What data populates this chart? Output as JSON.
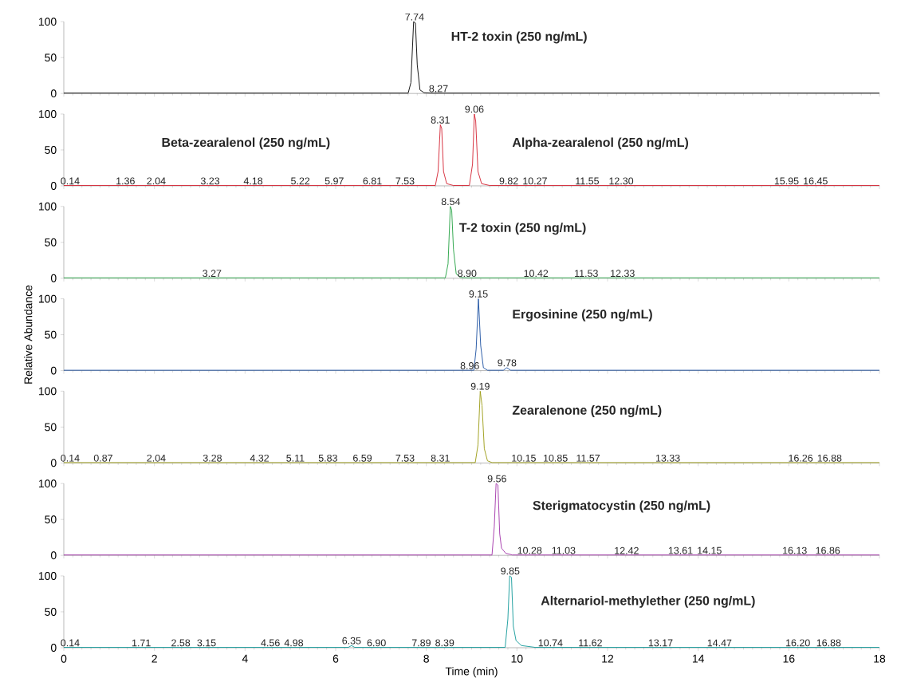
{
  "chart_data": [
    {
      "type": "line",
      "title": "HT-2 toxin (250 ng/mL)",
      "xlim": [
        0,
        18
      ],
      "ylim": [
        0,
        100
      ],
      "xticks": [
        0,
        2,
        4,
        6,
        8,
        10,
        12,
        14,
        16,
        18
      ],
      "yticks": [
        0,
        50,
        100
      ],
      "tick_labels": "y",
      "series": [
        {
          "color": "#000000",
          "x": [
            0,
            7.6,
            7.66,
            7.72,
            7.76,
            7.8,
            7.86,
            7.95,
            8.1,
            18
          ],
          "values": [
            0.5,
            0.5,
            15,
            100,
            98,
            40,
            5,
            1,
            0.5,
            0.5
          ]
        }
      ],
      "annotations": [
        {
          "text": "7.74",
          "x": 7.74,
          "y": 100
        },
        {
          "text": "8.27",
          "x": 8.27,
          "y": 0
        }
      ]
    },
    {
      "type": "line",
      "title": "Beta-zearalenol (250 ng/mL)",
      "xlim": [
        0,
        18
      ],
      "ylim": [
        0,
        100
      ],
      "xticks": [
        0,
        2,
        4,
        6,
        8,
        10,
        12,
        14,
        16,
        18
      ],
      "yticks": [
        0,
        50,
        100
      ],
      "tick_labels": "y",
      "series": [
        {
          "color": "#d42030",
          "x": [
            0,
            8.2,
            8.26,
            8.31,
            8.34,
            8.38,
            8.45,
            8.6,
            8.95,
            9.02,
            9.06,
            9.09,
            9.14,
            9.22,
            9.4,
            18
          ],
          "values": [
            0.5,
            0.5,
            20,
            85,
            80,
            20,
            3,
            0.5,
            0.5,
            30,
            100,
            90,
            20,
            3,
            0.5,
            0.5
          ]
        }
      ],
      "annotations": [
        "Alpha-zearalenol (250 ng/mL)",
        {
          "text": "0.14",
          "x": 0.14,
          "y": 0
        },
        {
          "text": "1.36",
          "x": 1.36,
          "y": 0
        },
        {
          "text": "2.04",
          "x": 2.04,
          "y": 0
        },
        {
          "text": "3.23",
          "x": 3.23,
          "y": 0
        },
        {
          "text": "4.18",
          "x": 4.18,
          "y": 0
        },
        {
          "text": "5.22",
          "x": 5.22,
          "y": 0
        },
        {
          "text": "5.97",
          "x": 5.97,
          "y": 0
        },
        {
          "text": "6.81",
          "x": 6.81,
          "y": 0
        },
        {
          "text": "7.53",
          "x": 7.53,
          "y": 0
        },
        {
          "text": "8.31",
          "x": 8.31,
          "y": 85
        },
        {
          "text": "9.06",
          "x": 9.06,
          "y": 100
        },
        {
          "text": "9.82",
          "x": 9.82,
          "y": 0
        },
        {
          "text": "10.27",
          "x": 10.27,
          "y": 0
        },
        {
          "text": "11.55",
          "x": 11.55,
          "y": 0
        },
        {
          "text": "12.30",
          "x": 12.3,
          "y": 0
        },
        {
          "text": "15.95",
          "x": 15.95,
          "y": 0
        },
        {
          "text": "16.45",
          "x": 16.45,
          "y": 0
        }
      ]
    },
    {
      "type": "line",
      "title": "T-2 toxin (250 ng/mL)",
      "xlim": [
        0,
        18
      ],
      "ylim": [
        0,
        100
      ],
      "xticks": [
        0,
        2,
        4,
        6,
        8,
        10,
        12,
        14,
        16,
        18
      ],
      "yticks": [
        0,
        50,
        100
      ],
      "tick_labels": "y",
      "series": [
        {
          "color": "#20a040",
          "x": [
            0,
            8.42,
            8.48,
            8.53,
            8.56,
            8.6,
            8.66,
            8.75,
            8.9,
            18
          ],
          "values": [
            0.5,
            0.5,
            20,
            100,
            95,
            40,
            6,
            1,
            0.5,
            0.5
          ]
        }
      ],
      "annotations": [
        {
          "text": "3.27",
          "x": 3.27,
          "y": 0
        },
        {
          "text": "8.54",
          "x": 8.54,
          "y": 100
        },
        {
          "text": "8.90",
          "x": 8.9,
          "y": 0
        },
        {
          "text": "10.42",
          "x": 10.42,
          "y": 0
        },
        {
          "text": "11.53",
          "x": 11.53,
          "y": 0
        },
        {
          "text": "12.33",
          "x": 12.33,
          "y": 0
        }
      ]
    },
    {
      "type": "line",
      "title": "Ergosinine (250 ng/mL)",
      "ylabel": "Relative Abundance",
      "xlim": [
        0,
        18
      ],
      "ylim": [
        0,
        100
      ],
      "xticks": [
        0,
        2,
        4,
        6,
        8,
        10,
        12,
        14,
        16,
        18
      ],
      "yticks": [
        0,
        50,
        100
      ],
      "tick_labels": "y",
      "series": [
        {
          "color": "#1a4fa0",
          "x": [
            0,
            9.05,
            9.1,
            9.15,
            9.2,
            9.26,
            9.35,
            9.7,
            9.78,
            9.86,
            18
          ],
          "values": [
            0.5,
            0.5,
            30,
            100,
            35,
            4,
            0.5,
            0.5,
            4,
            0.5,
            0.5
          ]
        }
      ],
      "annotations": [
        {
          "text": "8.96",
          "x": 8.96,
          "y": 0
        },
        {
          "text": "9.15",
          "x": 9.15,
          "y": 100
        },
        {
          "text": "9.78",
          "x": 9.78,
          "y": 4
        }
      ]
    },
    {
      "type": "line",
      "title": "Zearalenone (250 ng/mL)",
      "xlim": [
        0,
        18
      ],
      "ylim": [
        0,
        100
      ],
      "xticks": [
        0,
        2,
        4,
        6,
        8,
        10,
        12,
        14,
        16,
        18
      ],
      "yticks": [
        0,
        50,
        100
      ],
      "tick_labels": "y",
      "series": [
        {
          "color": "#9a9a10",
          "x": [
            0,
            9.08,
            9.14,
            9.19,
            9.23,
            9.28,
            9.35,
            9.45,
            18
          ],
          "values": [
            0.5,
            0.5,
            25,
            100,
            80,
            20,
            3,
            0.5,
            0.5
          ]
        }
      ],
      "annotations": [
        {
          "text": "0.14",
          "x": 0.14,
          "y": 0
        },
        {
          "text": "0.87",
          "x": 0.87,
          "y": 0
        },
        {
          "text": "2.04",
          "x": 2.04,
          "y": 0
        },
        {
          "text": "3.28",
          "x": 3.28,
          "y": 0
        },
        {
          "text": "4.32",
          "x": 4.32,
          "y": 0
        },
        {
          "text": "5.11",
          "x": 5.11,
          "y": 0
        },
        {
          "text": "5.83",
          "x": 5.83,
          "y": 0
        },
        {
          "text": "6.59",
          "x": 6.59,
          "y": 0
        },
        {
          "text": "7.53",
          "x": 7.53,
          "y": 0
        },
        {
          "text": "8.31",
          "x": 8.31,
          "y": 0
        },
        {
          "text": "9.19",
          "x": 9.19,
          "y": 100
        },
        {
          "text": "10.15",
          "x": 10.15,
          "y": 0
        },
        {
          "text": "10.85",
          "x": 10.85,
          "y": 0
        },
        {
          "text": "11.57",
          "x": 11.57,
          "y": 0
        },
        {
          "text": "13.33",
          "x": 13.33,
          "y": 0
        },
        {
          "text": "16.26",
          "x": 16.26,
          "y": 0
        },
        {
          "text": "16.88",
          "x": 16.88,
          "y": 0
        }
      ]
    },
    {
      "type": "line",
      "title": "Sterigmatocystin (250 ng/mL)",
      "xlim": [
        0,
        18
      ],
      "ylim": [
        0,
        100
      ],
      "xticks": [
        0,
        2,
        4,
        6,
        8,
        10,
        12,
        14,
        16,
        18
      ],
      "yticks": [
        0,
        50,
        100
      ],
      "tick_labels": "y",
      "series": [
        {
          "color": "#a030a8",
          "x": [
            0,
            9.45,
            9.5,
            9.54,
            9.58,
            9.62,
            9.66,
            9.75,
            9.9,
            18
          ],
          "values": [
            0.5,
            0.5,
            40,
            100,
            98,
            30,
            10,
            3,
            0.5,
            0.5
          ]
        }
      ],
      "annotations": [
        {
          "text": "9.56",
          "x": 9.56,
          "y": 100
        },
        {
          "text": "10.28",
          "x": 10.28,
          "y": 0
        },
        {
          "text": "11.03",
          "x": 11.03,
          "y": 0
        },
        {
          "text": "12.42",
          "x": 12.42,
          "y": 0
        },
        {
          "text": "13.61",
          "x": 13.61,
          "y": 0
        },
        {
          "text": "14.15",
          "x": 14.15,
          "y": 0
        },
        {
          "text": "16.13",
          "x": 16.13,
          "y": 0
        },
        {
          "text": "16.86",
          "x": 16.86,
          "y": 0
        }
      ]
    },
    {
      "type": "line",
      "title": "Alternariol-methylether (250 ng/mL)",
      "xlabel": "Time (min)",
      "xlim": [
        0,
        18
      ],
      "ylim": [
        0,
        100
      ],
      "xticks": [
        0,
        2,
        4,
        6,
        8,
        10,
        12,
        14,
        16,
        18
      ],
      "yticks": [
        0,
        50,
        100
      ],
      "series": [
        {
          "color": "#109898",
          "x": [
            0,
            6.28,
            6.35,
            6.42,
            9.74,
            9.8,
            9.84,
            9.88,
            9.92,
            9.98,
            10.1,
            10.4,
            18
          ],
          "values": [
            0.5,
            0.5,
            3,
            0.5,
            0.5,
            40,
            100,
            98,
            30,
            10,
            3,
            0.5,
            0.5
          ]
        }
      ],
      "annotations": [
        {
          "text": "0.14",
          "x": 0.14,
          "y": 0
        },
        {
          "text": "1.71",
          "x": 1.71,
          "y": 0
        },
        {
          "text": "2.58",
          "x": 2.58,
          "y": 0
        },
        {
          "text": "3.15",
          "x": 3.15,
          "y": 0
        },
        {
          "text": "4.56",
          "x": 4.56,
          "y": 0
        },
        {
          "text": "4.98",
          "x": 4.98,
          "y": 0
        },
        {
          "text": "6.35",
          "x": 6.35,
          "y": 3
        },
        {
          "text": "6.90",
          "x": 6.9,
          "y": 0
        },
        {
          "text": "7.89",
          "x": 7.89,
          "y": 0
        },
        {
          "text": "8.39",
          "x": 8.39,
          "y": 0
        },
        {
          "text": "9.85",
          "x": 9.85,
          "y": 100
        },
        {
          "text": "10.74",
          "x": 10.74,
          "y": 0
        },
        {
          "text": "11.62",
          "x": 11.62,
          "y": 0
        },
        {
          "text": "13.17",
          "x": 13.17,
          "y": 0
        },
        {
          "text": "14.47",
          "x": 14.47,
          "y": 0
        },
        {
          "text": "16.20",
          "x": 16.2,
          "y": 0
        },
        {
          "text": "16.88",
          "x": 16.88,
          "y": 0
        }
      ]
    }
  ]
}
